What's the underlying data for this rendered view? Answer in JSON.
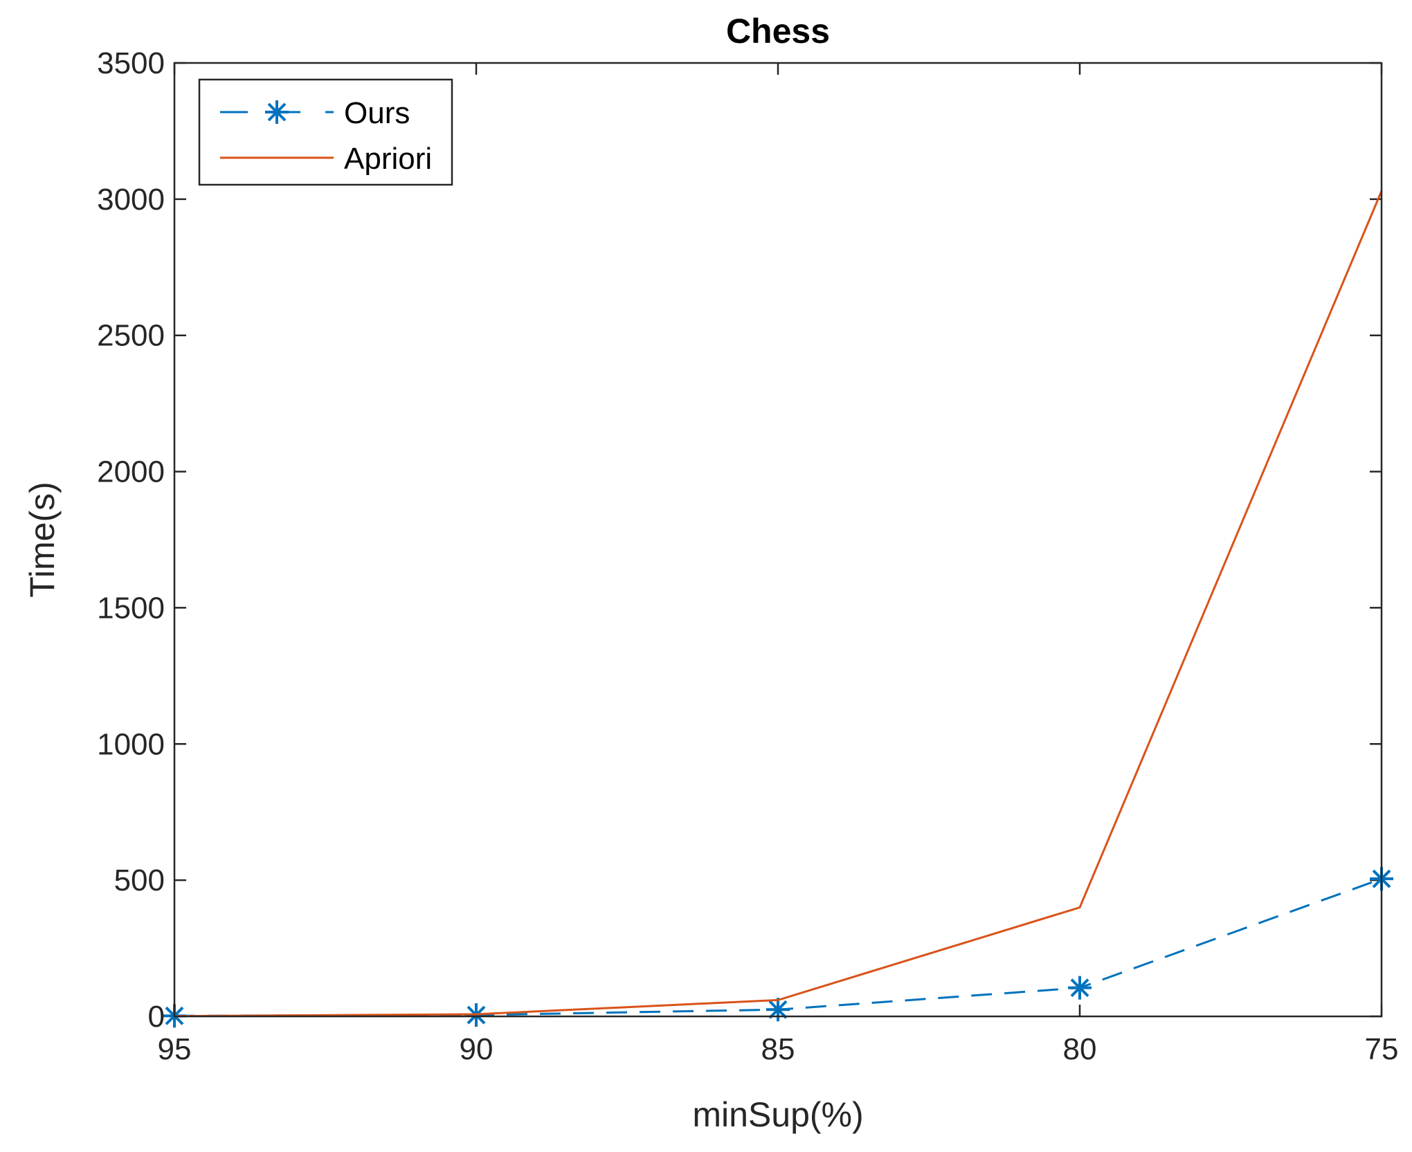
{
  "chart_data": {
    "type": "line",
    "title": "Chess",
    "xlabel": "minSup(%)",
    "ylabel": "Time(s)",
    "x": [
      95,
      90,
      85,
      80,
      75
    ],
    "x_tick_labels": [
      "95",
      "90",
      "85",
      "80",
      "75"
    ],
    "xlim": [
      95,
      75
    ],
    "x_reversed": true,
    "ylim": [
      0,
      3500
    ],
    "y_ticks": [
      0,
      500,
      1000,
      1500,
      2000,
      2500,
      3000,
      3500
    ],
    "y_tick_labels": [
      "0",
      "500",
      "1000",
      "1500",
      "2000",
      "2500",
      "3000",
      "3500"
    ],
    "grid": false,
    "legend_position": "top-left",
    "series": [
      {
        "name": "Ours",
        "values": [
          2,
          5,
          25,
          105,
          505
        ],
        "color": "#0072BD",
        "line_style": "dashed",
        "marker": "asterisk"
      },
      {
        "name": "Apriori",
        "values": [
          1,
          8,
          60,
          400,
          3030
        ],
        "color": "#D95319",
        "line_style": "solid",
        "marker": "none"
      }
    ]
  }
}
